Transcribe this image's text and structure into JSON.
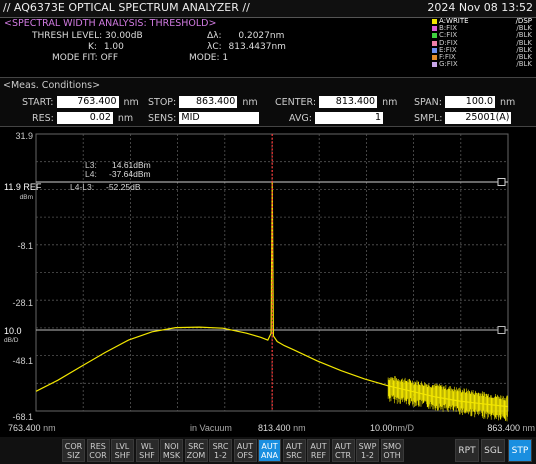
{
  "header": {
    "title": "// AQ6373E OPTICAL SPECTRUM ANALYZER //",
    "datetime": "2024 Nov 08 13:52"
  },
  "analysis": {
    "heading": "<SPECTRAL WIDTH ANALYSIS: THRESHOLD>",
    "thresh_label": "THRESH LEVEL:",
    "thresh_value": "30.00dB",
    "k_label": "K:",
    "k_value": "1.00",
    "modefit_label": "MODE FIT:",
    "modefit_value": "OFF",
    "dlambda_label": "Δλ:",
    "dlambda_value": "0.2027nm",
    "lc_label": "λC:",
    "lc_value": "813.4437nm",
    "mode_label": "MODE:",
    "mode_value": "1"
  },
  "traces": [
    {
      "label": "A:WRITE",
      "status": "/DSP",
      "color": "#f2e600"
    },
    {
      "label": "B:FIX",
      "status": "/BLK",
      "color": "#d95fd9"
    },
    {
      "label": "C:FIX",
      "status": "/BLK",
      "color": "#3fd23f"
    },
    {
      "label": "D:FIX",
      "status": "/BLK",
      "color": "#ef7fa8"
    },
    {
      "label": "E:FIX",
      "status": "/BLK",
      "color": "#6f8ff0"
    },
    {
      "label": "F:FIX",
      "status": "/BLK",
      "color": "#e08a2a"
    },
    {
      "label": "G:FIX",
      "status": "/BLK",
      "color": "#c9a6e8"
    }
  ],
  "meas": {
    "heading": "<Meas. Conditions>",
    "start_label": "START:",
    "start_value": "763.400",
    "start_unit": "nm",
    "stop_label": "STOP:",
    "stop_value": "863.400",
    "stop_unit": "nm",
    "center_label": "CENTER:",
    "center_value": "813.400",
    "center_unit": "nm",
    "span_label": "SPAN:",
    "span_value": "100.0",
    "span_unit": "nm",
    "res_label": "RES:",
    "res_value": "0.02",
    "res_unit": "nm",
    "sens_label": "SENS:",
    "sens_value": "MID",
    "avg_label": "AVG:",
    "avg_value": "1",
    "smpl_label": "SMPL:",
    "smpl_value": "25001(A)"
  },
  "plot": {
    "y_top": "31.9",
    "y_ref": "11.9 REF",
    "y_unit": "dBm",
    "y_tick_1": "-8.1",
    "y_tick_2": "-28.1",
    "y_tick_3": "-48.1",
    "y_bottom": "-68.1",
    "db_scale": "10.0",
    "db_unit": "dB/D",
    "marker_l3_label": "L3:",
    "marker_l3_value": "14.61dBm",
    "marker_l4_label": "L4:",
    "marker_l4_value": "-37.64dBm",
    "marker_diff_label": "L4-L3:",
    "marker_diff_value": "-52.25dB",
    "x_left": "763.400",
    "x_left_unit": "nm",
    "x_mid_note": "in Vacuum",
    "x_center": "813.400",
    "x_center_unit": "nm",
    "x_scale": "10.00",
    "x_scale_unit": "nm/D",
    "x_right": "863.400",
    "x_right_unit": "nm",
    "trace_color": "#f2e600",
    "marker_color": "#ff3b3b"
  },
  "chart_data": {
    "type": "line",
    "xlabel": "",
    "ylabel": "",
    "xlim": [
      763.4,
      863.4
    ],
    "ylim": [
      -68.1,
      31.9
    ],
    "series": [
      {
        "x": [
          763.4,
          768,
          773,
          778,
          783,
          788,
          793,
          798,
          803,
          808,
          811,
          812.5,
          813.2,
          813.44,
          813.7,
          814.5,
          816,
          818,
          823,
          828,
          833,
          838,
          843,
          848,
          853,
          858,
          863.4
        ],
        "y": [
          -61,
          -57,
          -52,
          -47,
          -42.5,
          -39.5,
          -38,
          -37.8,
          -38.2,
          -40,
          -41.5,
          -42.5,
          -40,
          14.6,
          -41,
          -43,
          -44.5,
          -46,
          -50,
          -53.5,
          -56.5,
          -59,
          -61,
          -63,
          -64.5,
          -65.5,
          -66.5
        ]
      }
    ]
  },
  "bottom": {
    "buttons": [
      {
        "l1": "COR",
        "l2": "SIZ",
        "active": false
      },
      {
        "l1": "RES",
        "l2": "COR",
        "active": false
      },
      {
        "l1": "LVL",
        "l2": "SHF",
        "active": false
      },
      {
        "l1": "WL",
        "l2": "SHF",
        "active": false
      },
      {
        "l1": "NOI",
        "l2": "MSK",
        "active": false
      },
      {
        "l1": "SRC",
        "l2": "ZOM",
        "active": false
      },
      {
        "l1": "SRC",
        "l2": "1-2",
        "active": false
      },
      {
        "l1": "AUT",
        "l2": "OFS",
        "active": false
      },
      {
        "l1": "AUT",
        "l2": "ANA",
        "active": true
      },
      {
        "l1": "AUT",
        "l2": "SRC",
        "active": false
      },
      {
        "l1": "AUT",
        "l2": "REF",
        "active": false
      },
      {
        "l1": "AUT",
        "l2": "CTR",
        "active": false
      },
      {
        "l1": "SWP",
        "l2": "1-2",
        "active": false
      },
      {
        "l1": "SMO",
        "l2": "OTH",
        "active": false
      }
    ],
    "rpt": "RPT",
    "sgl": "SGL",
    "stp": "STP"
  }
}
